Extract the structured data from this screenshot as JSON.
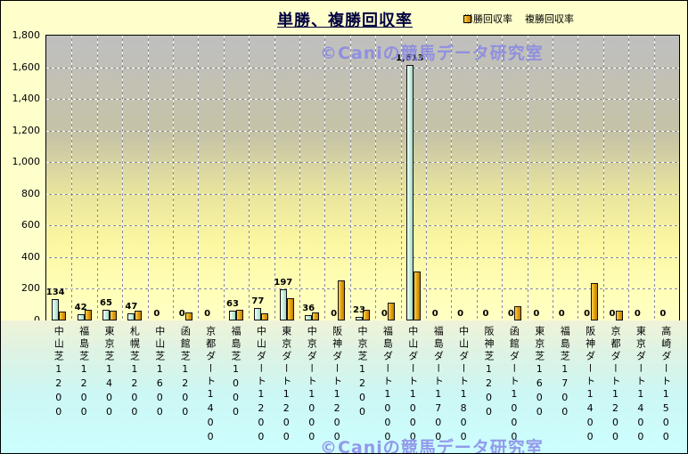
{
  "title": "単勝、複勝回収率",
  "watermark_text": "©Caniの競馬データ研究室",
  "colors": {
    "background": "#FFFFCC",
    "plot_top": "#BFBFBF",
    "plot_bottom": "#FFFFC4",
    "label_area_top": "#EFF3D8",
    "label_area_bottom": "#CCFFFF",
    "win_bar": "#CBF2E2",
    "place_bar": "#E8A614",
    "title_color": "#000040",
    "watermark_color": "#8787E6"
  },
  "legend": {
    "items": [
      {
        "label": "単勝回収率",
        "swatch": "win"
      },
      {
        "label": "複勝回収率",
        "swatch": "place"
      }
    ]
  },
  "chart_data": {
    "type": "bar",
    "title": "単勝、複勝回収率",
    "xlabel": "",
    "ylabel": "",
    "ylim": [
      0,
      1800
    ],
    "ytick_interval": 200,
    "grid": "dashed horizontal and vertical",
    "legend_position": "top-right",
    "data_labels": "win series only, bold, above bars",
    "categories": [
      "中山芝1200",
      "福島芝1200",
      "東京芝1400",
      "札幌芝1200",
      "中山芝1600",
      "函館芝1200",
      "京都ダート1400",
      "福島芝1000",
      "中山ダート1200",
      "東京ダート1200",
      "中京ダート1000",
      "阪神ダート1200",
      "中京芝1200",
      "福島ダート1000",
      "中山ダート1000",
      "福島ダート1700",
      "中山ダート1800",
      "阪神芝1200",
      "函館ダート1000",
      "東京芝1600",
      "福島芝1700",
      "阪神ダート1400",
      "京都ダート1200",
      "東京ダート1400",
      "高崎ダート1500"
    ],
    "series": [
      {
        "name": "単勝回収率",
        "values": [
          134,
          42,
          65,
          47,
          0,
          0,
          0,
          63,
          77,
          197,
          36,
          0,
          23,
          0,
          1613,
          0,
          0,
          0,
          0,
          0,
          0,
          0,
          0,
          0,
          0
        ],
        "labels_shown": true
      },
      {
        "name": "複勝回収率",
        "values": [
          58,
          65,
          60,
          63,
          0,
          53,
          0,
          65,
          45,
          140,
          48,
          255,
          68,
          115,
          310,
          0,
          0,
          0,
          90,
          0,
          0,
          235,
          60,
          0,
          0
        ],
        "labels_shown": false
      }
    ]
  }
}
